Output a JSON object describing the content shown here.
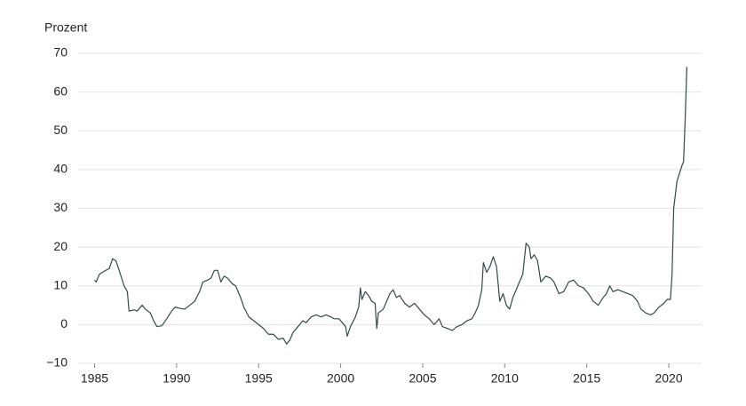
{
  "chart_data": {
    "type": "line",
    "y_label": "Prozent",
    "x": [
      1985.0,
      1985.1,
      1985.3,
      1985.6,
      1985.9,
      1986.1,
      1986.3,
      1986.5,
      1986.8,
      1987.0,
      1987.1,
      1987.4,
      1987.6,
      1987.9,
      1988.1,
      1988.4,
      1988.6,
      1988.8,
      1989.1,
      1989.4,
      1989.7,
      1989.9,
      1990.2,
      1990.5,
      1990.8,
      1991.1,
      1991.4,
      1991.6,
      1991.9,
      1992.1,
      1992.3,
      1992.5,
      1992.7,
      1992.9,
      1993.1,
      1993.4,
      1993.6,
      1993.9,
      1994.1,
      1994.4,
      1994.7,
      1995.0,
      1995.3,
      1995.6,
      1995.9,
      1996.2,
      1996.5,
      1996.7,
      1996.9,
      1997.1,
      1997.4,
      1997.7,
      1997.9,
      1998.2,
      1998.5,
      1998.8,
      1999.1,
      1999.4,
      1999.6,
      1999.9,
      2000.1,
      2000.3,
      2000.4,
      2000.6,
      2000.9,
      2001.1,
      2001.2,
      2001.3,
      2001.5,
      2001.7,
      2001.9,
      2002.1,
      2002.2,
      2002.3,
      2002.6,
      2002.8,
      2003.0,
      2003.2,
      2003.4,
      2003.6,
      2003.9,
      2004.2,
      2004.5,
      2004.8,
      2005.1,
      2005.4,
      2005.7,
      2006.0,
      2006.2,
      2006.5,
      2006.8,
      2007.1,
      2007.4,
      2007.7,
      2008.0,
      2008.2,
      2008.4,
      2008.6,
      2008.7,
      2008.9,
      2009.1,
      2009.3,
      2009.5,
      2009.7,
      2009.9,
      2010.1,
      2010.3,
      2010.5,
      2010.8,
      2011.1,
      2011.3,
      2011.5,
      2011.6,
      2011.8,
      2012.0,
      2012.2,
      2012.5,
      2012.8,
      2013.0,
      2013.3,
      2013.6,
      2013.9,
      2014.2,
      2014.5,
      2014.8,
      2015.1,
      2015.4,
      2015.7,
      2016.0,
      2016.2,
      2016.4,
      2016.6,
      2016.9,
      2017.2,
      2017.5,
      2017.8,
      2018.1,
      2018.3,
      2018.6,
      2018.9,
      2019.1,
      2019.4,
      2019.7,
      2019.9,
      2020.1,
      2020.2,
      2020.3,
      2020.5,
      2020.8,
      2020.9,
      2021.0,
      2021.1
    ],
    "series": [
      {
        "color": "#34494a",
        "values": [
          11.5,
          11,
          13,
          13.8,
          14.5,
          17,
          16.5,
          14,
          10,
          8.5,
          3.5,
          3.8,
          3.5,
          5,
          4,
          3,
          1,
          -0.5,
          -0.3,
          1.5,
          3.5,
          4.5,
          4.2,
          4,
          5,
          6,
          8.5,
          11,
          11.5,
          12,
          14,
          14,
          11,
          12.5,
          12,
          10.5,
          10,
          7,
          4.5,
          2,
          1,
          0,
          -1,
          -2.5,
          -2.5,
          -3.8,
          -3.5,
          -5,
          -4,
          -2,
          -0.5,
          1,
          0.5,
          2,
          2.5,
          2,
          2.5,
          2,
          1.5,
          1.5,
          0.5,
          -0.5,
          -3,
          -0.5,
          2,
          4.5,
          9.5,
          6.5,
          8.5,
          7.5,
          6,
          5.5,
          -1,
          3,
          4,
          6,
          8,
          9,
          7,
          7.5,
          5.5,
          4.5,
          5.5,
          4,
          2.5,
          1.5,
          0,
          1.5,
          -0.5,
          -1,
          -1.5,
          -0.5,
          0,
          1,
          1.5,
          3,
          5,
          9,
          16,
          13.5,
          15,
          17.5,
          15,
          6,
          8,
          5,
          4,
          7,
          10,
          13,
          21,
          20,
          17,
          18,
          16.5,
          11,
          12.5,
          12,
          11,
          8,
          8.5,
          11,
          11.5,
          10,
          9.5,
          8,
          6,
          5,
          7,
          8,
          10,
          8.5,
          9,
          8.5,
          8,
          7.5,
          6,
          4,
          3,
          2.5,
          3,
          4.5,
          5.5,
          6.5,
          6.5,
          13,
          30,
          37,
          41,
          42,
          53,
          66.5
        ]
      }
    ],
    "xlim": [
      1984,
      2022
    ],
    "xticks": [
      1985,
      1990,
      1995,
      2000,
      2005,
      2010,
      2015,
      2020
    ],
    "ylim": [
      -10,
      70
    ],
    "yticks": [
      {
        "value": -10,
        "label": "−10"
      },
      0,
      10,
      20,
      30,
      40,
      50,
      60,
      70
    ],
    "grid": true
  }
}
